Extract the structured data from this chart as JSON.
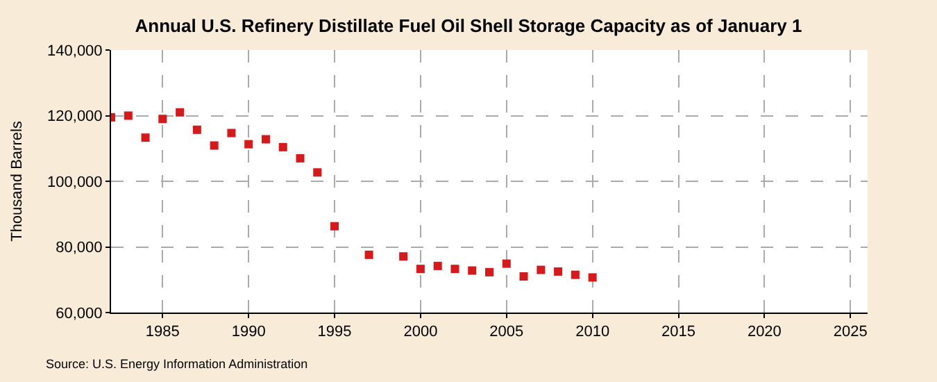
{
  "chart_data": {
    "type": "scatter",
    "title": "Annual U.S. Refinery Distillate Fuel Oil Shell Storage Capacity as of January 1",
    "ylabel": "Thousand Barrels",
    "x": [
      1982,
      1983,
      1984,
      1985,
      1986,
      1987,
      1988,
      1989,
      1990,
      1991,
      1992,
      1993,
      1994,
      1995,
      1997,
      1999,
      2000,
      2001,
      2002,
      2003,
      2004,
      2005,
      2006,
      2007,
      2008,
      2009,
      2010
    ],
    "series": [
      {
        "color": "#d7191c",
        "values": [
          119500,
          120000,
          113300,
          119000,
          121000,
          115700,
          110900,
          114700,
          111300,
          112800,
          110400,
          107000,
          102700,
          86300,
          77600,
          77100,
          73300,
          74200,
          73300,
          72800,
          72300,
          74900,
          71000,
          73000,
          72500,
          71500,
          70700
        ]
      }
    ],
    "xlim": [
      1982,
      2026
    ],
    "xticks": [
      1985,
      1990,
      1995,
      2000,
      2005,
      2010,
      2015,
      2020,
      2025
    ],
    "ylim": [
      60000,
      140000
    ],
    "yticks": [
      {
        "value": 60000,
        "label": "60,000"
      },
      {
        "value": 80000,
        "label": "80,000"
      },
      {
        "value": 100000,
        "label": "100,000"
      },
      {
        "value": 120000,
        "label": "120,000"
      },
      {
        "value": 140000,
        "label": "140,000"
      }
    ],
    "grid": true,
    "marker": "square",
    "annotations": [
      "Source: U.S. Energy Information Administration"
    ]
  }
}
